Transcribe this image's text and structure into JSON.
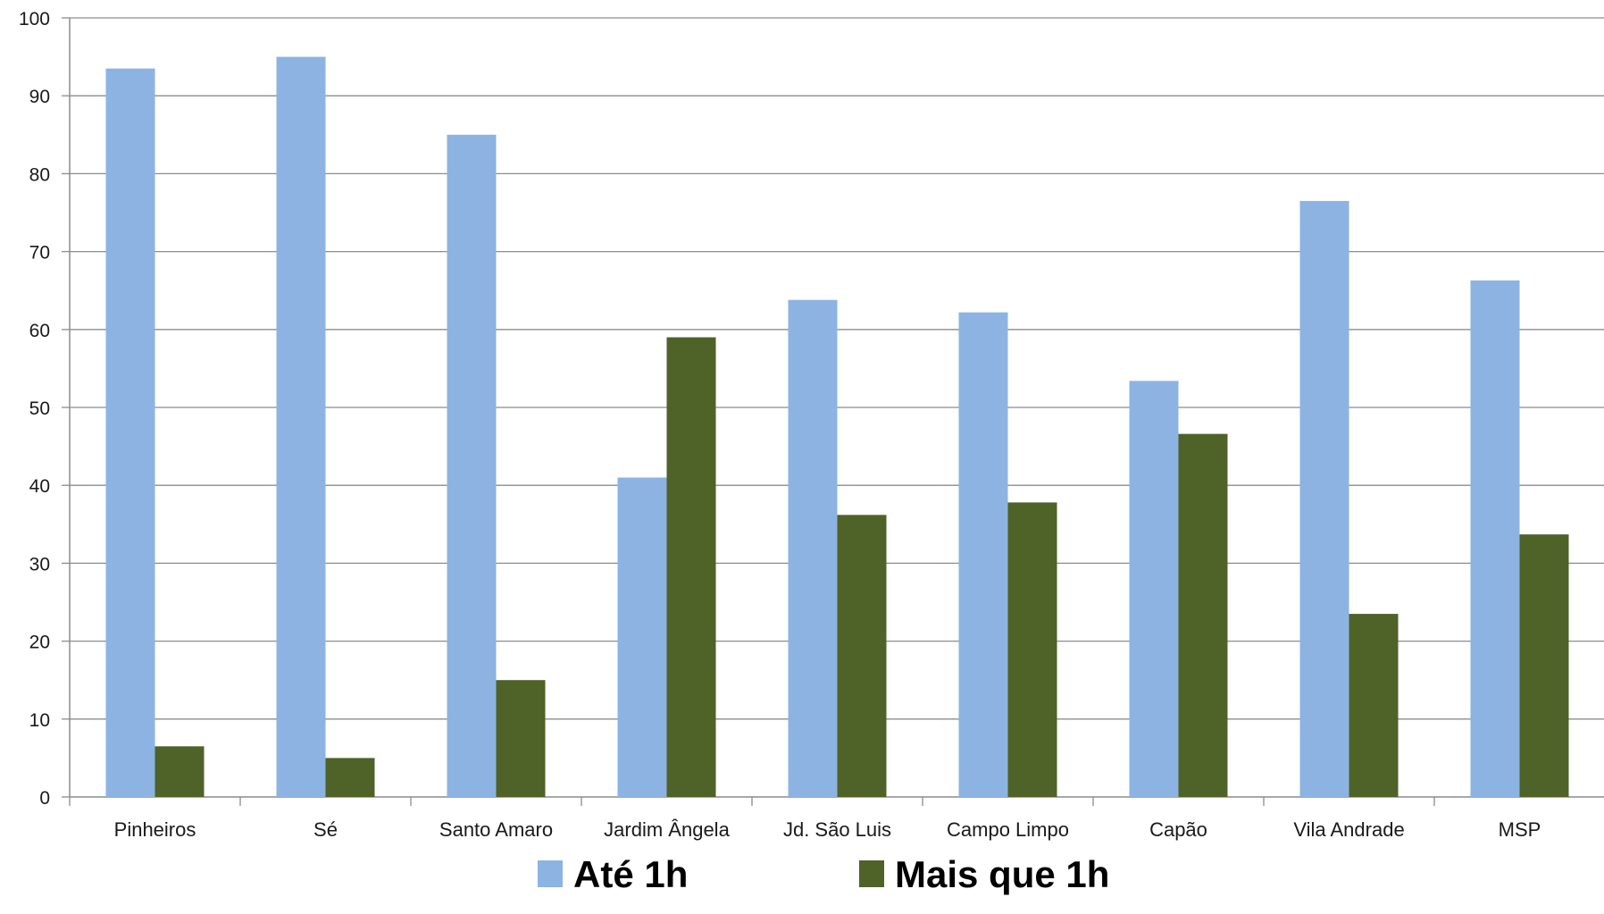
{
  "chart_data": {
    "type": "bar",
    "categories": [
      "Pinheiros",
      "Sé",
      "Santo Amaro",
      "Jardim Ângela",
      "Jd. São Luis",
      "Campo Limpo",
      "Capão",
      "Vila Andrade",
      "MSP"
    ],
    "series": [
      {
        "name": "Até 1h",
        "values": [
          93.5,
          95,
          85,
          41,
          63.8,
          62.2,
          53.4,
          76.5,
          66.3
        ],
        "color": "#8db3e2"
      },
      {
        "name": "Mais que 1h",
        "values": [
          6.5,
          5,
          15,
          59,
          36.2,
          37.8,
          46.6,
          23.5,
          33.7
        ],
        "color": "#4f6228"
      }
    ],
    "yticks": [
      "0",
      "10",
      "20",
      "30",
      "40",
      "50",
      "60",
      "70",
      "80",
      "90",
      "100"
    ],
    "ylim": [
      0,
      100
    ],
    "grid": true,
    "legend_position": "bottom",
    "title": "",
    "xlabel": "",
    "ylabel": ""
  }
}
